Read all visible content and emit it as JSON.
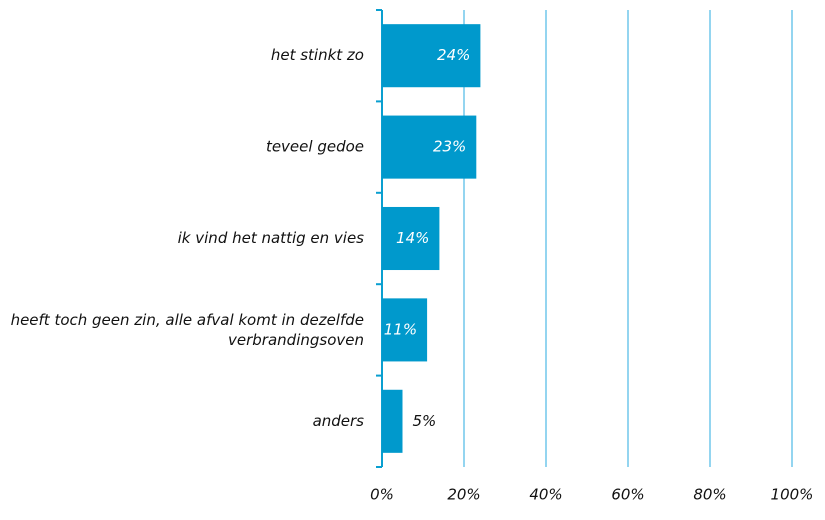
{
  "chart_data": {
    "type": "barh",
    "categories": [
      "het stinkt zo",
      "teveel gedoe",
      "ik vind het nattig en vies",
      "heeft toch geen zin, alle afval komt in dezelfde verbrandingsoven",
      "anders"
    ],
    "values": [
      24,
      23,
      14,
      11,
      5
    ],
    "value_labels": [
      "24%",
      "23%",
      "14%",
      "11%",
      "5%"
    ],
    "color": "#0099cc",
    "xlim": [
      0,
      100
    ],
    "xticks": [
      {
        "value": 0,
        "label": "0%"
      },
      {
        "value": 20,
        "label": "20%"
      },
      {
        "value": 40,
        "label": "40%"
      },
      {
        "value": 60,
        "label": "60%"
      },
      {
        "value": 80,
        "label": "80%"
      },
      {
        "value": 100,
        "label": "100%"
      }
    ],
    "grid": true
  }
}
